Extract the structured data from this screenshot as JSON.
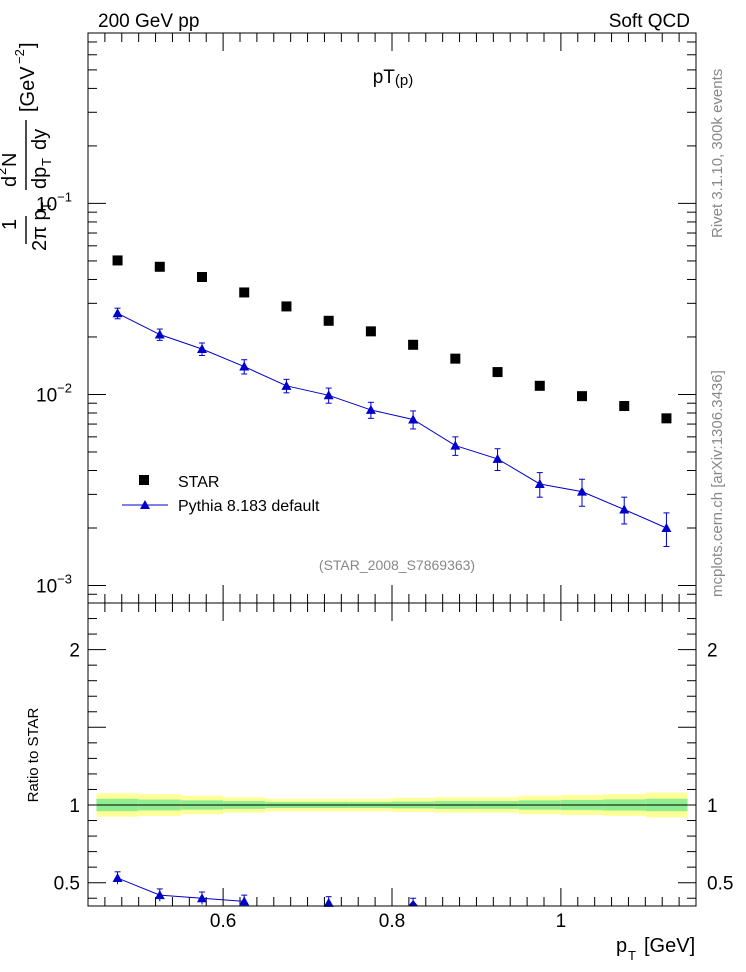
{
  "header": {
    "left": "200 GeV pp",
    "right": "Soft QCD"
  },
  "side_labels": {
    "rivet": "Rivet 3.1.10,  300k events",
    "mcplots": "mcplots.cern.ch [arXiv:1306.3436]"
  },
  "chart_data": [
    {
      "type": "scatter",
      "title": "pT(p)",
      "title_main": "pT",
      "title_sub": "(p)",
      "watermark": "(STAR_2008_S7869363)",
      "ylabel": "1/(2π pT) d²N/(dpT dy) [GeV⁻²]",
      "yscale": "log",
      "ylim": [
        0.00081,
        0.78
      ],
      "xlim": [
        0.44,
        1.16
      ],
      "yticks": [
        {
          "value": 0.1,
          "base": "10",
          "exp": "−1"
        },
        {
          "value": 0.01,
          "base": "10",
          "exp": "−2"
        },
        {
          "value": 0.001,
          "base": "10",
          "exp": "−3"
        }
      ],
      "legend": [
        {
          "label": "STAR",
          "marker": "square",
          "color": "#000000"
        },
        {
          "label": "Pythia 8.183 default",
          "marker": "triangle",
          "color": "#0000cc"
        }
      ],
      "legend_position": "bottom-left",
      "x": [
        0.475,
        0.525,
        0.575,
        0.625,
        0.675,
        0.725,
        0.775,
        0.825,
        0.875,
        0.925,
        0.975,
        1.025,
        1.075,
        1.125
      ],
      "series": [
        {
          "name": "STAR",
          "color": "#000000",
          "marker": "square",
          "values": [
            0.0503,
            0.0466,
            0.0412,
            0.0342,
            0.0289,
            0.0243,
            0.0214,
            0.0182,
            0.0154,
            0.0131,
            0.0111,
            0.0098,
            0.0087,
            0.0075
          ]
        },
        {
          "name": "Pythia 8.183 default",
          "color": "#0000cc",
          "marker": "triangle",
          "values": [
            0.0266,
            0.0206,
            0.0173,
            0.014,
            0.0111,
            0.0099,
            0.0083,
            0.0074,
            0.0054,
            0.0046,
            0.0034,
            0.0031,
            0.0025,
            0.002
          ],
          "err_low": [
            0.0017,
            0.0014,
            0.0013,
            0.0012,
            0.0009,
            0.0009,
            0.0008,
            0.0008,
            0.0006,
            0.0006,
            0.0005,
            0.0005,
            0.0004,
            0.0004
          ],
          "err_high": [
            0.0017,
            0.0014,
            0.0013,
            0.0012,
            0.0009,
            0.0009,
            0.0008,
            0.0008,
            0.0006,
            0.0006,
            0.0005,
            0.0005,
            0.0004,
            0.0004
          ]
        }
      ]
    },
    {
      "type": "scatter",
      "ylabel": "Ratio to STAR",
      "xlabel": "pT [GeV]",
      "xlim": [
        0.44,
        1.16
      ],
      "ylim": [
        0.35,
        2.3
      ],
      "xticks": [
        {
          "value": 0.6,
          "label": "0.6"
        },
        {
          "value": 0.8,
          "label": "0.8"
        },
        {
          "value": 1.0,
          "label": "1"
        }
      ],
      "yticks": [
        {
          "value": 0.5,
          "label": "0.5"
        },
        {
          "value": 1,
          "label": "1"
        },
        {
          "value": 2,
          "label": "2"
        }
      ],
      "reference_line": 1,
      "bands": {
        "x_edges": [
          0.45,
          0.5,
          0.55,
          0.6,
          0.65,
          0.7,
          0.75,
          0.8,
          0.85,
          0.9,
          0.95,
          1.0,
          1.05,
          1.1,
          1.15
        ],
        "yellow_half": [
          0.075,
          0.07,
          0.06,
          0.05,
          0.04,
          0.04,
          0.04,
          0.045,
          0.05,
          0.05,
          0.06,
          0.065,
          0.07,
          0.08
        ],
        "green_half": [
          0.04,
          0.035,
          0.03,
          0.025,
          0.02,
          0.02,
          0.02,
          0.022,
          0.025,
          0.025,
          0.03,
          0.033,
          0.036,
          0.04
        ],
        "yellow_color": "#ffff99",
        "green_color": "#90ee90"
      },
      "series": [
        {
          "name": "Pythia 8.183 default",
          "color": "#0000cc",
          "marker": "triangle",
          "x": [
            0.475,
            0.525,
            0.575,
            0.625,
            0.725,
            0.825
          ],
          "values": [
            0.53,
            0.42,
            0.4,
            0.38,
            0.37,
            0.35
          ],
          "err": [
            0.04,
            0.04,
            0.04,
            0.04,
            0.04,
            0.05
          ]
        }
      ]
    }
  ]
}
